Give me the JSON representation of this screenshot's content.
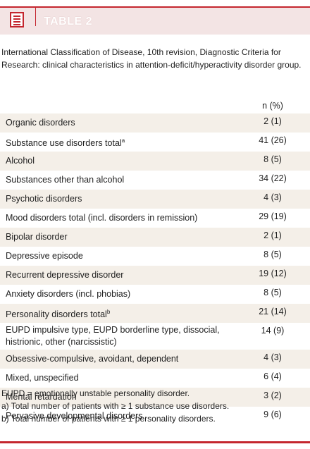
{
  "header": {
    "title": "TABLE 2"
  },
  "caption": "International Classification of Disease, 10th revision, Diagnostic Criteria for Research: clinical characteristics in attention-deficit/hyperactivity disorder group.",
  "table": {
    "column_header": "n (%)",
    "rows": [
      {
        "label": "Organic disorders",
        "value": "2 (1)"
      },
      {
        "label": "Substance use disorders total",
        "sup": "a",
        "value": "41 (26)"
      },
      {
        "label": "Alcohol",
        "value": "8 (5)"
      },
      {
        "label": "Substances other than alcohol",
        "value": "34 (22)"
      },
      {
        "label": "Psychotic disorders",
        "value": "4 (3)"
      },
      {
        "label": "Mood disorders total (incl. disorders in remission)",
        "value": "29 (19)"
      },
      {
        "label": "Bipolar disorder",
        "value": "2 (1)"
      },
      {
        "label": "Depressive episode",
        "value": "8 (5)"
      },
      {
        "label": "Recurrent depressive disorder",
        "value": "19 (12)"
      },
      {
        "label": "Anxiety disorders (incl. phobias)",
        "value": "8 (5)"
      },
      {
        "label": "Personality disorders total",
        "sup": "b",
        "value": "21 (14)"
      },
      {
        "label": "EUPD impulsive type, EUPD borderline type, dissocial, histrionic, other (narcissistic)",
        "value": "14 (9)"
      },
      {
        "label": "Obsessive-compulsive, avoidant, dependent",
        "value": "4 (3)"
      },
      {
        "label": "Mixed, unspecified",
        "value": "6 (4)"
      },
      {
        "label": "Mental retardation",
        "value": "3 (2)"
      },
      {
        "label": "Pervasive developmental disorders",
        "value": "9 (6)"
      }
    ]
  },
  "footnotes": [
    "EUPD = emotionally unstable personality disorder.",
    "a) Total number of patients with ≥ 1 substance use disorders.",
    "b) Total number of patients with ≥ 1 personality disorders."
  ]
}
